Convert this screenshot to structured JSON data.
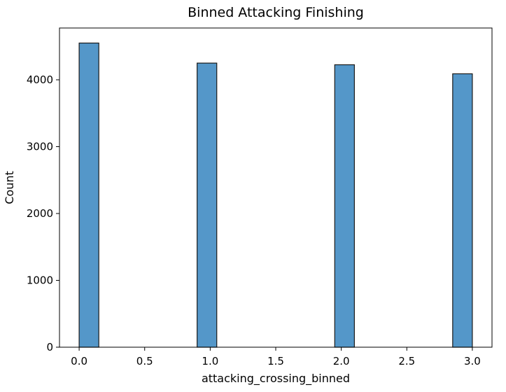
{
  "chart_data": {
    "type": "bar",
    "title": "Binned Attacking Finishing",
    "xlabel": "attacking_crossing_binned",
    "ylabel": "Count",
    "xlim": [
      -0.15,
      3.15
    ],
    "ylim": [
      0,
      4775
    ],
    "x_ticks": [
      0.0,
      0.5,
      1.0,
      1.5,
      2.0,
      2.5,
      3.0
    ],
    "x_tick_labels": [
      "0.0",
      "0.5",
      "1.0",
      "1.5",
      "2.0",
      "2.5",
      "3.0"
    ],
    "y_ticks": [
      0,
      1000,
      2000,
      3000,
      4000
    ],
    "y_tick_labels": [
      "0",
      "1000",
      "2000",
      "3000",
      "4000"
    ],
    "bin_width": 0.15,
    "bars": [
      {
        "x_start": 0.0,
        "x_end": 0.15,
        "value": 4550
      },
      {
        "x_start": 0.9,
        "x_end": 1.05,
        "value": 4250
      },
      {
        "x_start": 1.95,
        "x_end": 2.1,
        "value": 4225
      },
      {
        "x_start": 2.85,
        "x_end": 3.0,
        "value": 4090
      }
    ],
    "bar_color": "#5497c9",
    "bar_edge_color": "#1a1a1a",
    "grid": false,
    "legend": false
  }
}
